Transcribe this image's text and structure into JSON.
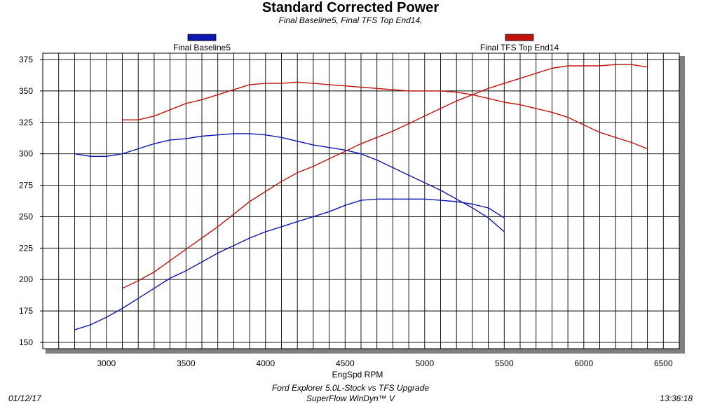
{
  "header": {
    "title": "Standard Corrected Power",
    "subtitle": "Final Baseline5, Final TFS Top End14,"
  },
  "footer": {
    "line1": "Ford Explorer 5.0L-Stock vs TFS Upgrade",
    "line2": "SuperFlow WinDyn™ V",
    "date": "01/12/17",
    "time": "13:36:18"
  },
  "colors": {
    "baseline": "#0d16b0",
    "tfs": "#c0140c"
  },
  "chart_data": {
    "type": "line",
    "title": "Standard Corrected Power",
    "subtitle": "Final Baseline5, Final TFS Top End14,",
    "xlabel": "EngSpd RPM",
    "ylabel": "",
    "xlim": [
      2600,
      6600
    ],
    "ylim": [
      145,
      380
    ],
    "xticks": [
      3000,
      3500,
      4000,
      4500,
      5000,
      5500,
      6000,
      6500
    ],
    "yticks": [
      150,
      175,
      200,
      225,
      250,
      275,
      300,
      325,
      350,
      375
    ],
    "grid": true,
    "legend": "top",
    "series": [
      {
        "name": "Final Baseline5",
        "color": "#0d16b0",
        "lines": [
          {
            "x": [
              2800,
              2900,
              3000,
              3100,
              3200,
              3300,
              3400,
              3500,
              3600,
              3700,
              3800,
              3900,
              4000,
              4100,
              4200,
              4300,
              4400,
              4500,
              4600,
              4700,
              4800,
              4900,
              5000,
              5100,
              5200,
              5300,
              5400,
              5500
            ],
            "y": [
              300,
              298,
              298,
              300,
              304,
              308,
              311,
              312,
              314,
              315,
              316,
              316,
              315,
              313,
              310,
              307,
              305,
              303,
              300,
              295,
              289,
              283,
              277,
              271,
              264,
              257,
              249,
              238
            ]
          },
          {
            "x": [
              2800,
              2900,
              3000,
              3100,
              3200,
              3300,
              3400,
              3500,
              3600,
              3700,
              3800,
              3900,
              4000,
              4100,
              4200,
              4300,
              4400,
              4500,
              4600,
              4700,
              4800,
              4900,
              5000,
              5100,
              5200,
              5300,
              5400,
              5500
            ],
            "y": [
              160,
              164,
              170,
              177,
              185,
              193,
              201,
              207,
              214,
              221,
              227,
              233,
              238,
              242,
              246,
              250,
              254,
              259,
              263,
              264,
              264,
              264,
              264,
              263,
              262,
              260,
              257,
              249
            ]
          }
        ]
      },
      {
        "name": "Final TFS Top End14",
        "color": "#c0140c",
        "lines": [
          {
            "x": [
              3100,
              3200,
              3300,
              3400,
              3500,
              3600,
              3700,
              3800,
              3900,
              4000,
              4100,
              4200,
              4300,
              4400,
              4500,
              4600,
              4700,
              4800,
              4900,
              5000,
              5100,
              5200,
              5300,
              5400,
              5500,
              5600,
              5700,
              5800,
              5900,
              6000,
              6100,
              6200,
              6300,
              6400
            ],
            "y": [
              327,
              327,
              330,
              335,
              340,
              343,
              347,
              351,
              355,
              356,
              356,
              357,
              356,
              355,
              354,
              353,
              352,
              351,
              350,
              350,
              350,
              349,
              347,
              344,
              341,
              339,
              336,
              333,
              329,
              323,
              317,
              313,
              309,
              304
            ]
          },
          {
            "x": [
              3100,
              3200,
              3300,
              3400,
              3500,
              3600,
              3700,
              3800,
              3900,
              4000,
              4100,
              4200,
              4300,
              4400,
              4500,
              4600,
              4700,
              4800,
              4900,
              5000,
              5100,
              5200,
              5300,
              5400,
              5500,
              5600,
              5700,
              5800,
              5900,
              6000,
              6100,
              6200,
              6300,
              6400
            ],
            "y": [
              193,
              199,
              206,
              215,
              224,
              233,
              242,
              252,
              262,
              270,
              278,
              285,
              290,
              296,
              302,
              308,
              313,
              318,
              324,
              330,
              336,
              342,
              347,
              352,
              356,
              360,
              364,
              368,
              370,
              370,
              370,
              371,
              371,
              369
            ]
          }
        ]
      }
    ]
  }
}
